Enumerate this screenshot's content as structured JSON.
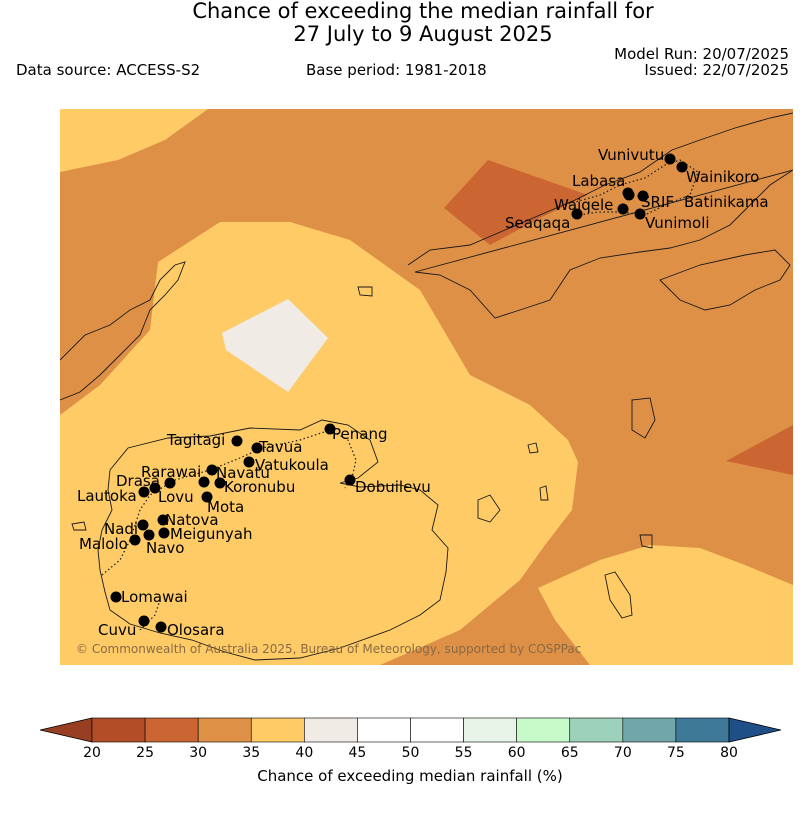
{
  "header": {
    "title_line1": "Chance of exceeding the median rainfall for",
    "title_line2": "27 July to 9 August 2025",
    "data_source": "Data source: ACCESS-S2",
    "base_period": "Base period: 1981-2018",
    "model_run": "Model Run: 20/07/2025",
    "issued": "Issued: 22/07/2025"
  },
  "map": {
    "credit": "© Commonwealth of Australia 2025, Bureau of Meteorology, supported by COSPPac",
    "places": [
      {
        "name": "Vunivutu"
      },
      {
        "name": "Wainikoro"
      },
      {
        "name": "Labasa"
      },
      {
        "name": "SRIF"
      },
      {
        "name": "Batinikama"
      },
      {
        "name": "Waiqele"
      },
      {
        "name": "Seaqaqa"
      },
      {
        "name": "Vunimoli"
      },
      {
        "name": "Tagitagi"
      },
      {
        "name": "Tavua"
      },
      {
        "name": "Penang"
      },
      {
        "name": "Rarawai"
      },
      {
        "name": "Navatu"
      },
      {
        "name": "Vatukoula"
      },
      {
        "name": "Drasa"
      },
      {
        "name": "Koronubu"
      },
      {
        "name": "Dobuilevu"
      },
      {
        "name": "Lautoka"
      },
      {
        "name": "Lovu"
      },
      {
        "name": "Mota"
      },
      {
        "name": "Natova"
      },
      {
        "name": "Nadi"
      },
      {
        "name": "Meigunyah"
      },
      {
        "name": "Malolo"
      },
      {
        "name": "Navo"
      },
      {
        "name": "Lomawai"
      },
      {
        "name": "Cuvu"
      },
      {
        "name": "Olosara"
      }
    ]
  },
  "colorbar": {
    "label": "Chance of exceeding median rainfall (%)",
    "ticks": [
      "20",
      "25",
      "30",
      "35",
      "40",
      "45",
      "50",
      "55",
      "60",
      "65",
      "70",
      "75",
      "80"
    ],
    "colors": [
      "#b24d27",
      "#cb6633",
      "#de9046",
      "#fecb66",
      "#f0ebe5",
      "#ffffff",
      "#ffffff",
      "#e9f4e9",
      "#c8f9c8",
      "#9dd1b9",
      "#71a7ab",
      "#3f7998"
    ],
    "under_color": "#983f23",
    "over_color": "#1f4f87"
  }
}
